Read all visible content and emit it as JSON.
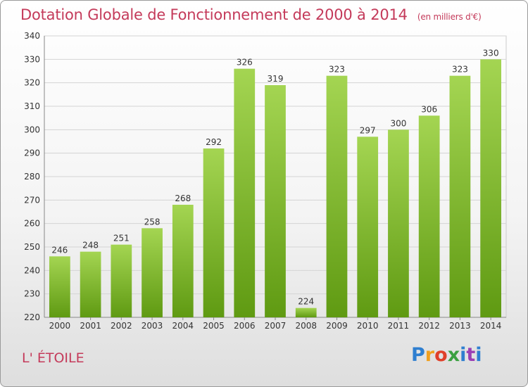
{
  "header": {
    "title": "Dotation Globale de Fonctionnement de 2000 à 2014",
    "subtitle": "(en milliers d'€)"
  },
  "footer": {
    "commune": "L' ÉTOILE",
    "logo_letters": [
      "P",
      "r",
      "o",
      "x",
      "i",
      "t",
      "i"
    ]
  },
  "chart_data": {
    "type": "bar",
    "title": "Dotation Globale de Fonctionnement de 2000 à 2014",
    "subtitle": "(en milliers d'€)",
    "xlabel": "",
    "ylabel": "",
    "categories": [
      "2000",
      "2001",
      "2002",
      "2003",
      "2004",
      "2005",
      "2006",
      "2007",
      "2008",
      "2009",
      "2010",
      "2011",
      "2012",
      "2013",
      "2014"
    ],
    "values": [
      246,
      248,
      251,
      258,
      268,
      292,
      326,
      319,
      224,
      323,
      297,
      300,
      306,
      323,
      330
    ],
    "ylim": [
      220,
      340
    ],
    "yticks": [
      220,
      230,
      240,
      250,
      260,
      270,
      280,
      290,
      300,
      310,
      320,
      330,
      340
    ],
    "grid": true,
    "legend": "none",
    "colors": {
      "bar_light": "#9ccf4a",
      "bar_dark": "#5f9a12",
      "text_accent": "#c43a5a"
    }
  }
}
